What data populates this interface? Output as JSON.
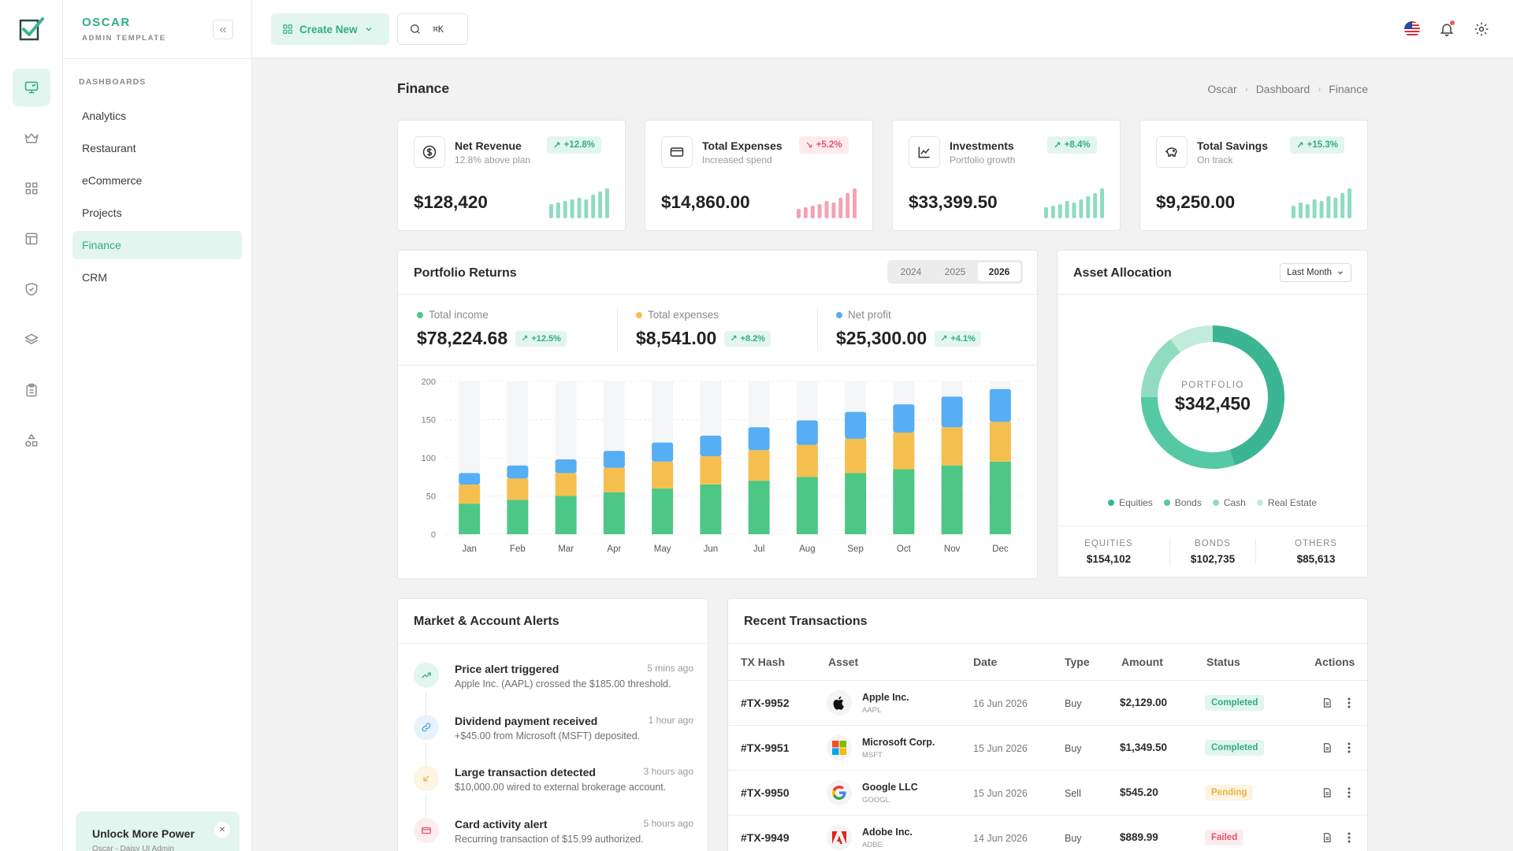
{
  "brand": {
    "name": "OSCAR",
    "subtitle": "ADMIN TEMPLATE"
  },
  "rail_icons": [
    "monitor-icon",
    "crown-icon",
    "grid-icon",
    "layout-icon",
    "shield-check-icon",
    "layers-icon",
    "clipboard-icon",
    "shapes-icon"
  ],
  "sidebar": {
    "section": "DASHBOARDS",
    "items": [
      {
        "label": "Analytics"
      },
      {
        "label": "Restaurant"
      },
      {
        "label": "eCommerce"
      },
      {
        "label": "Projects"
      },
      {
        "label": "Finance",
        "active": true
      },
      {
        "label": "CRM"
      }
    ],
    "promo": {
      "title": "Unlock More Power",
      "subtitle": "Oscar - Daisy UI Admin"
    }
  },
  "topbar": {
    "create_label": "Create New",
    "search_shortcut": "⌘K"
  },
  "page": {
    "title": "Finance",
    "breadcrumb": [
      "Oscar",
      "Dashboard",
      "Finance"
    ]
  },
  "kpis": [
    {
      "title": "Net Revenue",
      "subtitle": "12.8% above plan",
      "change": "+12.8%",
      "direction": "up",
      "value": "$128,420",
      "icon": "dollar-circle-icon",
      "spark": [
        0.45,
        0.5,
        0.55,
        0.6,
        0.65,
        0.6,
        0.75,
        0.85,
        0.95
      ]
    },
    {
      "title": "Total Expenses",
      "subtitle": "Increased spend",
      "change": "+5.2%",
      "direction": "down",
      "value": "$14,860.00",
      "icon": "credit-card-icon",
      "spark": [
        0.3,
        0.35,
        0.4,
        0.45,
        0.55,
        0.5,
        0.65,
        0.8,
        0.95
      ]
    },
    {
      "title": "Investments",
      "subtitle": "Portfolio growth",
      "change": "+8.4%",
      "direction": "up",
      "value": "$33,399.50",
      "icon": "line-chart-icon",
      "spark": [
        0.35,
        0.4,
        0.45,
        0.55,
        0.5,
        0.6,
        0.7,
        0.8,
        0.95
      ]
    },
    {
      "title": "Total Savings",
      "subtitle": "On track",
      "change": "+15.3%",
      "direction": "up",
      "value": "$9,250.00",
      "icon": "piggy-bank-icon",
      "spark": [
        0.4,
        0.5,
        0.45,
        0.6,
        0.55,
        0.7,
        0.65,
        0.8,
        0.95
      ]
    }
  ],
  "portfolio": {
    "title": "Portfolio Returns",
    "years": [
      "2024",
      "2025",
      "2026"
    ],
    "active_year": "2026",
    "stats": [
      {
        "label": "Total income",
        "value": "$78,224.68",
        "change": "+12.5%",
        "color": "#4dc785"
      },
      {
        "label": "Total expenses",
        "value": "$8,541.00",
        "change": "+8.2%",
        "color": "#f5bf4f"
      },
      {
        "label": "Net profit",
        "value": "$25,300.00",
        "change": "+4.1%",
        "color": "#56aef5"
      }
    ]
  },
  "chart_data": {
    "type": "bar",
    "stacked": true,
    "categories": [
      "Jan",
      "Feb",
      "Mar",
      "Apr",
      "May",
      "Jun",
      "Jul",
      "Aug",
      "Sep",
      "Oct",
      "Nov",
      "Dec"
    ],
    "series": [
      {
        "values": [
          40,
          45,
          50,
          55,
          60,
          65,
          70,
          75,
          80,
          85,
          90,
          95
        ],
        "color": "#4dc785"
      },
      {
        "values": [
          25,
          28,
          30,
          32,
          35,
          37,
          40,
          42,
          45,
          48,
          50,
          52
        ],
        "color": "#f5bf4f"
      },
      {
        "values": [
          15,
          17,
          18,
          22,
          25,
          27,
          30,
          32,
          35,
          37,
          40,
          43
        ],
        "color": "#56aef5"
      }
    ],
    "ylim": [
      0,
      200
    ],
    "yticks": [
      0,
      50,
      100,
      150,
      200
    ],
    "grid": true
  },
  "allocation": {
    "title": "Asset Allocation",
    "period": "Last Month",
    "center_label": "PORTFOLIO",
    "center_value": "$342,450",
    "segments": [
      {
        "name": "Equities",
        "share": 45,
        "color": "#3bb592"
      },
      {
        "name": "Bonds",
        "share": 30,
        "color": "#55c8a4"
      },
      {
        "name": "Cash",
        "share": 15,
        "color": "#8fdcc1"
      },
      {
        "name": "Real Estate",
        "share": 10,
        "color": "#c2ebdc"
      }
    ],
    "summary": [
      {
        "label": "EQUITIES",
        "value": "$154,102"
      },
      {
        "label": "BONDS",
        "value": "$102,735"
      },
      {
        "label": "OTHERS",
        "value": "$85,613"
      }
    ]
  },
  "alerts": {
    "title": "Market & Account Alerts",
    "items": [
      {
        "title": "Price alert triggered",
        "time": "5 mins ago",
        "desc": "Apple Inc. (AAPL) crossed the $185.00 threshold.",
        "icon": "trending-up-icon",
        "color": "#2fae83",
        "bg": "#e3f5ef"
      },
      {
        "title": "Dividend payment received",
        "time": "1 hour ago",
        "desc": "+$45.00 from Microsoft (MSFT) deposited.",
        "icon": "link-icon",
        "color": "#4a9ee8",
        "bg": "#e7f2fd"
      },
      {
        "title": "Large transaction detected",
        "time": "3 hours ago",
        "desc": "$10,000.00 wired to external brokerage account.",
        "icon": "arrow-down-left-icon",
        "color": "#f0b03d",
        "bg": "#fdf4e3"
      },
      {
        "title": "Card activity alert",
        "time": "5 hours ago",
        "desc": "Recurring transaction of $15.99 authorized.",
        "icon": "credit-card-icon",
        "color": "#e5536a",
        "bg": "#fdecee"
      }
    ]
  },
  "transactions": {
    "title": "Recent Transactions",
    "columns": [
      "TX Hash",
      "Asset",
      "Date",
      "Type",
      "Amount",
      "Status",
      "Actions"
    ],
    "rows": [
      {
        "hash": "#TX-9952",
        "asset": "Apple Inc.",
        "ticker": "AAPL",
        "logo": "apple-logo-icon",
        "date": "16 Jun 2026",
        "type": "Buy",
        "amount": "$2,129.00",
        "status": "Completed"
      },
      {
        "hash": "#TX-9951",
        "asset": "Microsoft Corp.",
        "ticker": "MSFT",
        "logo": "microsoft-logo-icon",
        "date": "15 Jun 2026",
        "type": "Buy",
        "amount": "$1,349.50",
        "status": "Completed"
      },
      {
        "hash": "#TX-9950",
        "asset": "Google LLC",
        "ticker": "GOOGL",
        "logo": "google-logo-icon",
        "date": "15 Jun 2026",
        "type": "Sell",
        "amount": "$545.20",
        "status": "Pending"
      },
      {
        "hash": "#TX-9949",
        "asset": "Adobe Inc.",
        "ticker": "ADBE",
        "logo": "adobe-logo-icon",
        "date": "14 Jun 2026",
        "type": "Buy",
        "amount": "$889.99",
        "status": "Failed"
      }
    ]
  }
}
